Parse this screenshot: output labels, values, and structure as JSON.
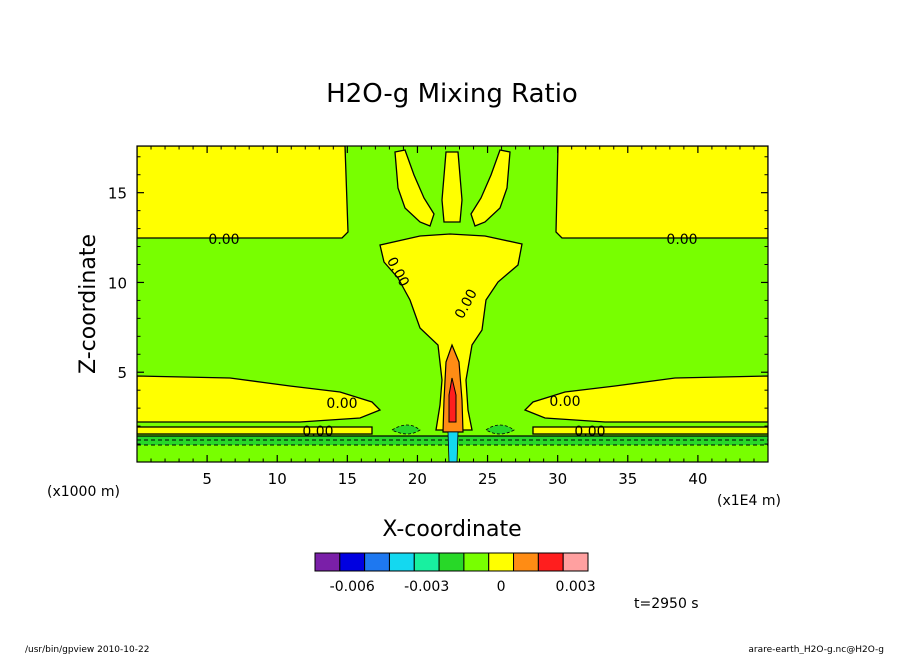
{
  "chart_data": {
    "type": "contour",
    "title": "H2O-g Mixing Ratio",
    "xlabel": "X-coordinate",
    "ylabel": "Z-coordinate",
    "x_unit": "(x1E4 m)",
    "y_unit": "(x1000 m)",
    "xlim": [
      0,
      45
    ],
    "ylim": [
      0,
      17.6
    ],
    "x_ticks": [
      5,
      10,
      15,
      20,
      25,
      30,
      35,
      40
    ],
    "y_ticks": [
      5,
      10,
      15
    ],
    "contour_labels": [
      "0.00",
      "0.00",
      "0.00",
      "0.00",
      "0.00",
      "0.00",
      "0.00",
      "0.00"
    ],
    "colorbar": {
      "colors": [
        "#7a1fa8",
        "#0000e0",
        "#1e78f0",
        "#14d8f0",
        "#18f0a0",
        "#28d828",
        "#78ff00",
        "#ffff00",
        "#ff8c14",
        "#ff1e1e",
        "#ffa0a0"
      ],
      "tick_labels": [
        "-0.006",
        "-0.003",
        "0",
        "0.003"
      ],
      "range": [
        -0.0075,
        0.0035
      ]
    },
    "colors": {
      "zero_to_pos": "#ffff00",
      "neg_small": "#78ff00",
      "neg_mid": "#28d828",
      "pos_high": "#ff8c14",
      "pos_peak": "#ff1e1e"
    }
  },
  "time_label": "t=2950 s",
  "footer": {
    "left": "/usr/bin/gpview   2010-10-22",
    "right": "arare-earth_H2O-g.nc@H2O-g"
  }
}
